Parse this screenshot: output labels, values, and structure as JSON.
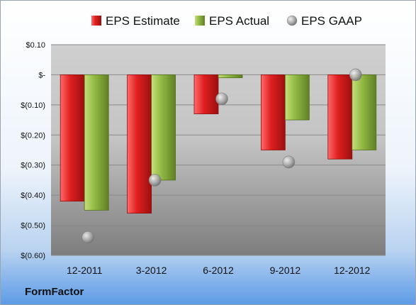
{
  "company": "FormFactor",
  "colors": {
    "estimate": "#d42020",
    "actual": "#8cb43a",
    "gaap": "#a8a8a8"
  },
  "chart_data": {
    "type": "bar",
    "categories": [
      "12-2011",
      "3-2012",
      "6-2012",
      "9-2012",
      "12-2012"
    ],
    "series": [
      {
        "name": "EPS Estimate",
        "kind": "bar",
        "values": [
          -0.42,
          -0.46,
          -0.13,
          -0.25,
          -0.28
        ]
      },
      {
        "name": "EPS Actual",
        "kind": "bar",
        "values": [
          -0.45,
          -0.35,
          -0.01,
          -0.15,
          -0.25
        ]
      },
      {
        "name": "EPS GAAP",
        "kind": "scatter",
        "values": [
          -0.54,
          -0.35,
          -0.08,
          -0.29,
          0.0
        ]
      }
    ],
    "ylim": [
      -0.6,
      0.1
    ],
    "yticks": [
      0.1,
      0.0,
      -0.1,
      -0.2,
      -0.3,
      -0.4,
      -0.5,
      -0.6
    ],
    "ytick_labels": [
      "$0.10",
      "$-",
      "$(0.10)",
      "$(0.20)",
      "$(0.30)",
      "$(0.40)",
      "$(0.50)",
      "$(0.60)"
    ],
    "legend_position": "top",
    "grid": true
  }
}
